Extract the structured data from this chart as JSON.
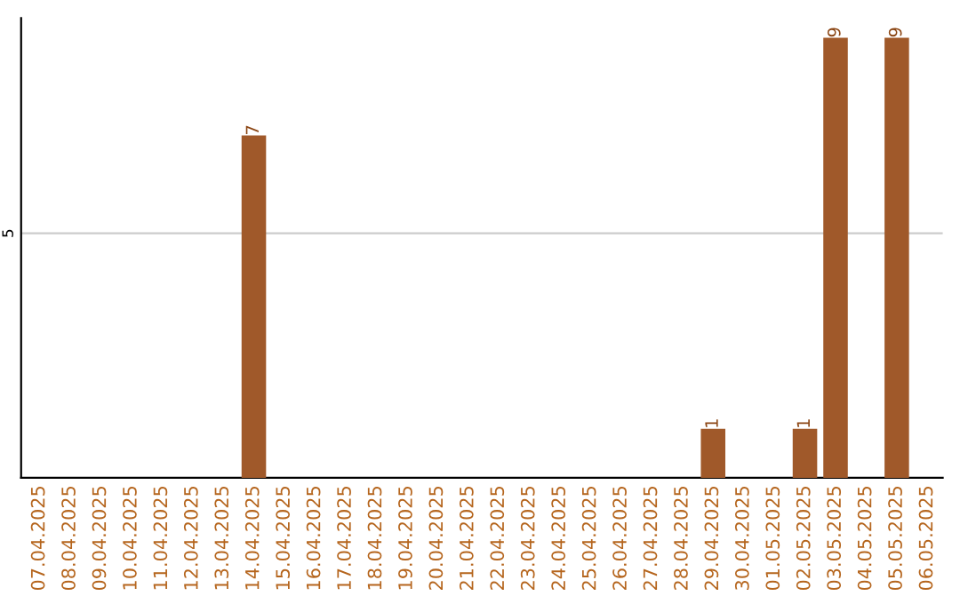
{
  "chart_data": {
    "type": "bar",
    "categories": [
      "07.04.2025",
      "08.04.2025",
      "09.04.2025",
      "10.04.2025",
      "11.04.2025",
      "12.04.2025",
      "13.04.2025",
      "14.04.2025",
      "15.04.2025",
      "16.04.2025",
      "17.04.2025",
      "18.04.2025",
      "19.04.2025",
      "20.04.2025",
      "21.04.2025",
      "22.04.2025",
      "23.04.2025",
      "24.04.2025",
      "25.04.2025",
      "26.04.2025",
      "27.04.2025",
      "28.04.2025",
      "29.04.2025",
      "30.04.2025",
      "01.05.2025",
      "02.05.2025",
      "03.05.2025",
      "04.05.2025",
      "05.05.2025",
      "06.05.2025"
    ],
    "values": [
      0,
      0,
      0,
      0,
      0,
      0,
      0,
      7,
      0,
      0,
      0,
      0,
      0,
      0,
      0,
      0,
      0,
      0,
      0,
      0,
      0,
      0,
      1,
      0,
      0,
      1,
      9,
      0,
      9,
      0
    ],
    "value_labels": [
      null,
      null,
      null,
      null,
      null,
      null,
      null,
      "7",
      null,
      null,
      null,
      null,
      null,
      null,
      null,
      null,
      null,
      null,
      null,
      null,
      null,
      null,
      "1",
      null,
      null,
      "1",
      "9",
      null,
      "9",
      null
    ],
    "color": "#a0592a",
    "ylim": [
      0,
      9.4
    ],
    "yticks": [
      5
    ],
    "grid": "y"
  }
}
